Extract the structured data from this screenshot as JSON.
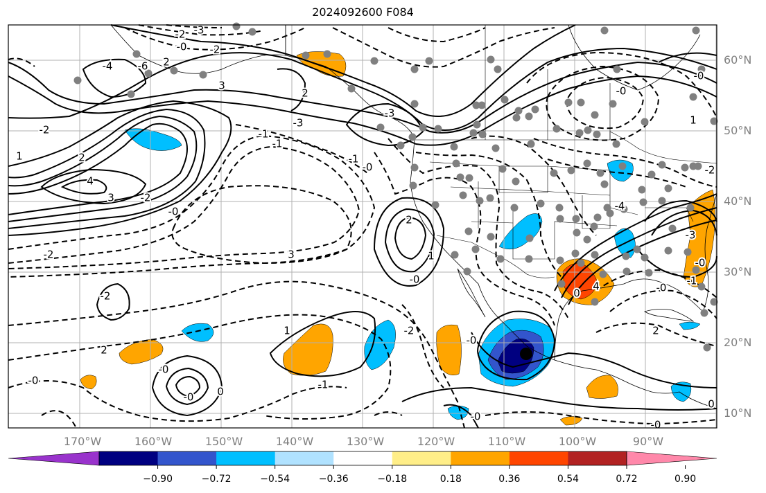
{
  "title": "2024092600 F084",
  "lat_labels": [
    "60°N",
    "50°N",
    "40°N",
    "30°N",
    "20°N",
    "10°N"
  ],
  "lon_labels": [
    "170°W",
    "160°W",
    "150°W",
    "140°W",
    "130°W",
    "120°W",
    "110°W",
    "100°W",
    "90°W"
  ],
  "colorbar": {
    "colors": [
      "#9933cc",
      "#000080",
      "#3355cc",
      "#00bfff",
      "#b0e2ff",
      "#ffffff",
      "#ffee88",
      "#ffa500",
      "#ff4500",
      "#b22222",
      "#ff88aa"
    ],
    "tick_labels": [
      "−0.90",
      "−0.72",
      "−0.54",
      "−0.36",
      "−0.18",
      "0.18",
      "0.36",
      "0.54",
      "0.72",
      "0.90"
    ]
  },
  "contour_labels": [
    "-2",
    "-3",
    "-0",
    "-2",
    "2",
    "-4",
    "-6",
    "-3",
    "-3",
    "2",
    "3",
    "-1",
    "-2",
    "1",
    "2",
    "4",
    "3",
    "-2",
    "-0",
    "-1",
    "-1",
    "-0",
    "-2",
    "3",
    "2",
    "1",
    "-0",
    "-2",
    "2",
    "-0",
    "-1",
    "1",
    "-0",
    "-0",
    "0",
    "-2",
    "-0",
    "-0",
    "1",
    "-4",
    "-3",
    "-0",
    "4",
    "0",
    "-0",
    "2",
    "-1",
    "-0",
    "-0",
    "0",
    "-0",
    "-2"
  ],
  "markers": {
    "point_color": "#808080",
    "storm_color": "#000000"
  }
}
